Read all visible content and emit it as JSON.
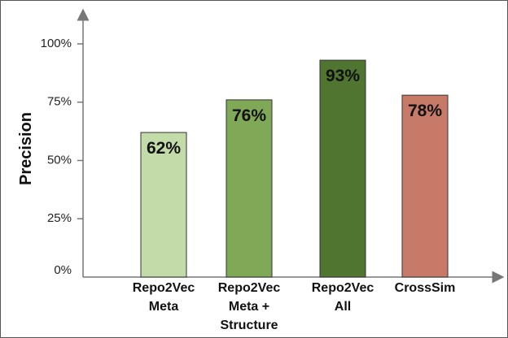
{
  "chart_data": {
    "type": "bar",
    "ylabel": "Precision",
    "xlabel": "",
    "ylim": [
      0,
      120
    ],
    "yticks": [
      {
        "value": 0,
        "label": "0%"
      },
      {
        "value": 25,
        "label": "25%"
      },
      {
        "value": 50,
        "label": "50%"
      },
      {
        "value": 75,
        "label": "75%"
      },
      {
        "value": 100,
        "label": "100%"
      }
    ],
    "categories": [
      [
        "Repo2Vec",
        "Meta"
      ],
      [
        "Repo2Vec",
        "Meta +",
        "Structure"
      ],
      [
        "Repo2Vec",
        "All"
      ],
      [
        "CrossSim"
      ]
    ],
    "values": [
      62,
      76,
      93,
      78
    ],
    "value_labels": [
      "62%",
      "76%",
      "93%",
      "78%"
    ],
    "colors": [
      "#c3dba9",
      "#7fa857",
      "#4f7530",
      "#c87a68"
    ],
    "grid": false,
    "legend": "none"
  }
}
